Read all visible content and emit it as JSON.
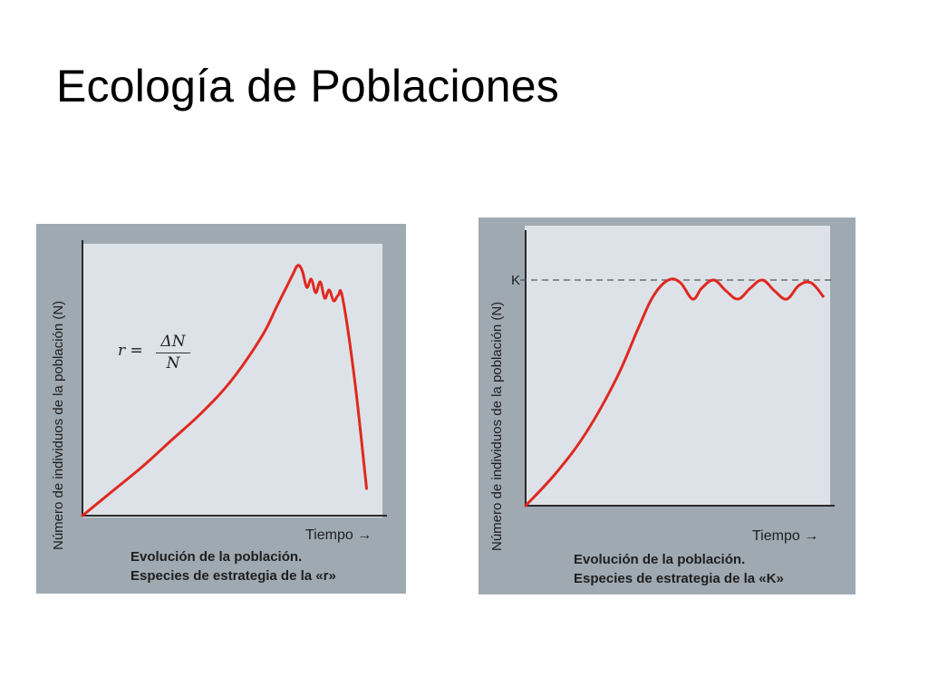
{
  "slide": {
    "title": "Ecología de Poblaciones"
  },
  "chart_data": [
    {
      "type": "line",
      "title": "",
      "xlabel": "Tiempo →",
      "ylabel": "Número de individuos de la población (N)",
      "caption": [
        "Evolución de la población.",
        "Especies de estrategia de la «r»"
      ],
      "annotation": {
        "lhs": "r =",
        "numerator": "ΔN",
        "denominator": "N"
      },
      "xlim": [
        0,
        100
      ],
      "ylim": [
        0,
        100
      ],
      "series": [
        {
          "color": "#e0281f",
          "x": [
            0,
            10,
            20,
            30,
            40,
            50,
            60,
            65,
            70,
            72,
            73.5,
            75,
            76.5,
            78,
            79.5,
            81,
            82.5,
            84,
            85.5,
            87,
            91,
            95
          ],
          "y": [
            0,
            9,
            18,
            28,
            38,
            50,
            66,
            77,
            88,
            92,
            90,
            84,
            87,
            82,
            86,
            80,
            83,
            79,
            81,
            80,
            50,
            10
          ]
        }
      ]
    },
    {
      "type": "line",
      "title": "",
      "xlabel": "Tiempo →",
      "ylabel": "Número de individuos de la población (N)",
      "caption": [
        "Evolución de la población.",
        "Especies de estrategia de la «K»"
      ],
      "reference_line": {
        "label": "K",
        "y": 83,
        "style": "dashed"
      },
      "xlim": [
        0,
        100
      ],
      "ylim": [
        0,
        100
      ],
      "series": [
        {
          "color": "#e0281f",
          "x": [
            0,
            10,
            20,
            30,
            37,
            42,
            47,
            51,
            55,
            58,
            62,
            66,
            70,
            74,
            78,
            82,
            86,
            90,
            94,
            98
          ],
          "y": [
            0,
            12,
            27,
            47,
            65,
            77,
            83,
            82,
            76,
            80,
            83,
            79,
            76,
            80,
            83,
            79,
            76,
            81,
            82,
            77
          ]
        }
      ]
    }
  ]
}
